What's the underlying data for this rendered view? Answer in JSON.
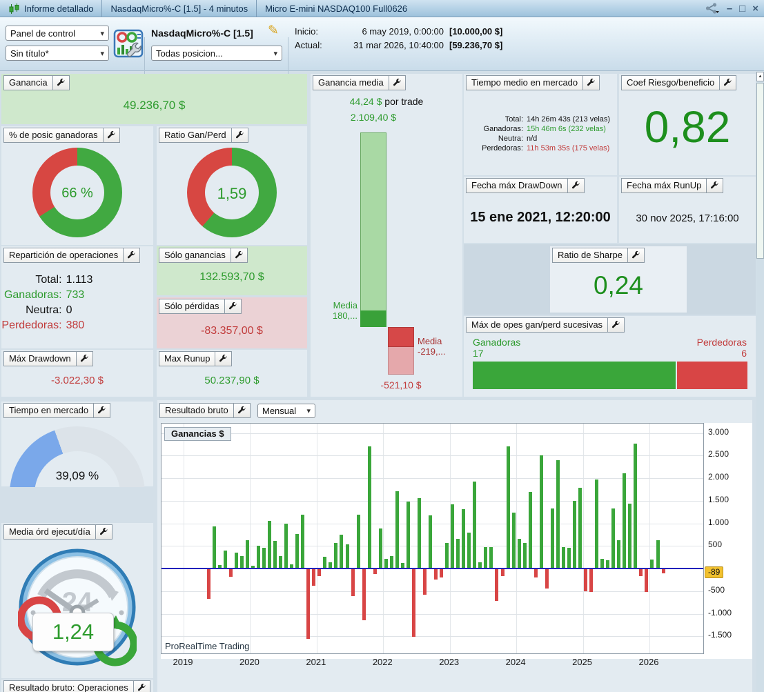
{
  "titlebar": {
    "tab1": "Informe detallado",
    "tab2": "NasdaqMicro%-C [1.5] - 4 minutos",
    "tab3": "Micro E-mini NASDAQ100 Full0626",
    "minimize": "–",
    "maximize": "□",
    "close": "×"
  },
  "toolbar": {
    "dropdown_panel": "Panel de control",
    "dropdown_layout": "Sin título*",
    "instrument": "NasdaqMicro%-C [1.5]",
    "dropdown_positions": "Todas posicion...",
    "inicio_label": "Inicio:",
    "inicio_date": "6 may 2019, 0:00:00",
    "inicio_amount": "[10.000,00 $]",
    "actual_label": "Actual:",
    "actual_date": "31 mar 2026, 10:40:00",
    "actual_amount": "[59.236,70 $]"
  },
  "colors": {
    "green_text": "#2d9b2d",
    "red_text": "#c13b3b",
    "donut_green": "#41a941",
    "donut_red": "#d74742",
    "gauge_blue": "#7aa8ea",
    "gauge_track": "#dce3e9",
    "bar_green": "#3aa63a",
    "bar_red": "#d84545",
    "zero_line": "#2121bb",
    "tag_bg": "#f2c12e",
    "gain_bg": "#cfe8cc",
    "loss_bg": "#ebd2d5"
  },
  "panels": {
    "ganancia": {
      "label": "Ganancia",
      "value": "49.236,70 $"
    },
    "posic_ganadoras": {
      "label": "% de posic ganadoras",
      "value": "66 %",
      "percent": 66
    },
    "ratio_gan_perd": {
      "label": "Ratio Gan/Perd",
      "value": "1,59",
      "green_pct": 61.4
    },
    "ganancia_media": {
      "label": "Ganancia media",
      "per_trade_value": "44,24 $",
      "per_trade_suffix": "por trade",
      "max_win": "2.109,40 $",
      "max_win_num": 2109.4,
      "media_win_label": "Media",
      "media_win": "180,...",
      "media_win_num": 181,
      "media_loss_label": "Media",
      "media_loss": "-219,...",
      "media_loss_num": -219,
      "max_loss": "-521,10 $",
      "max_loss_num": -521.1
    },
    "tiempo_medio": {
      "label": "Tiempo medio en mercado",
      "total_label": "Total:",
      "total": "14h 26m 43s (213 velas)",
      "ganadoras_label": "Ganadoras:",
      "ganadoras": "15h 46m 6s (232 velas)",
      "neutra_label": "Neutra:",
      "neutra": "n/d",
      "perdedoras_label": "Perdedoras:",
      "perdedoras": "11h 53m 35s (175 velas)"
    },
    "coef_riesgo": {
      "label": "Coef Riesgo/beneficio",
      "value": "0,82"
    },
    "fecha_drawdown": {
      "label": "Fecha máx DrawDown",
      "value": "15 ene 2021, 12:20:00"
    },
    "fecha_runup": {
      "label": "Fecha máx RunUp",
      "value": "30 nov 2025, 17:16:00"
    },
    "reparticion": {
      "label": "Repartición de operaciones",
      "total_label": "Total:",
      "total": "1.113",
      "ganadoras_label": "Ganadoras:",
      "ganadoras": "733",
      "neutra_label": "Neutra:",
      "neutra": "0",
      "perdedoras_label": "Perdedoras:",
      "perdedoras": "380"
    },
    "solo_ganancias": {
      "label": "Sólo ganancias",
      "value": "132.593,70 $"
    },
    "solo_perdidas": {
      "label": "Sólo pérdidas",
      "value": "-83.357,00 $"
    },
    "ratio_sharpe": {
      "label": "Ratio de Sharpe",
      "value": "0,24"
    },
    "max_sucesivas": {
      "label": "Máx de opes gan/perd sucesivas",
      "ganadoras_label": "Ganadoras",
      "ganadoras": "17",
      "ganadoras_num": 17,
      "perdedoras_label": "Perdedoras",
      "perdedoras": "6",
      "perdedoras_num": 6
    },
    "max_drawdown": {
      "label": "Máx Drawdown",
      "value": "-3.022,30 $"
    },
    "max_runup": {
      "label": "Max Runup",
      "value": "50.237,90 $"
    },
    "tiempo_mercado": {
      "label": "Tiempo en mercado",
      "value": "39,09 %",
      "percent": 39.09
    },
    "media_ord": {
      "label": "Media órd ejecut/día",
      "value": "1,24",
      "clock_number": "24"
    },
    "resultado_bruto": {
      "label": "Resultado bruto",
      "period": "Mensual",
      "legend": "Ganancias $",
      "watermark": "ProRealTime Trading",
      "last_value_tag": "-89"
    },
    "resultado_operaciones": {
      "label": "Resultado bruto: Operaciones"
    }
  },
  "chart_data": {
    "type": "bar",
    "title": "Resultado bruto (Mensual) - Ganancias $",
    "legend": "Ganancias $",
    "start_month": "2019-05",
    "x_year_labels": [
      "2019",
      "2020",
      "2021",
      "2022",
      "2023",
      "2024",
      "2025",
      "2026"
    ],
    "y_ticks": [
      {
        "v": 3000,
        "label": "3.000"
      },
      {
        "v": 2500,
        "label": "2.500"
      },
      {
        "v": 2000,
        "label": "2.000"
      },
      {
        "v": 1500,
        "label": "1.500"
      },
      {
        "v": 1000,
        "label": "1.000"
      },
      {
        "v": 500,
        "label": "500"
      },
      {
        "v": -500,
        "label": "-500"
      },
      {
        "v": -1000,
        "label": "-1.000"
      },
      {
        "v": -1500,
        "label": "-1.500"
      }
    ],
    "ylim": [
      -1908,
      3206
    ],
    "grid": true,
    "last_value": -89,
    "values": [
      -650,
      930,
      70,
      390,
      -170,
      350,
      280,
      620,
      60,
      510,
      460,
      1060,
      610,
      270,
      990,
      90,
      760,
      1190,
      -1540,
      -360,
      -160,
      260,
      130,
      560,
      750,
      530,
      -600,
      1190,
      -1130,
      2700,
      -110,
      880,
      210,
      280,
      1710,
      120,
      1480,
      -1500,
      1550,
      -560,
      1170,
      -230,
      -180,
      560,
      1420,
      660,
      1310,
      790,
      1920,
      130,
      480,
      470,
      -700,
      -150,
      2700,
      1230,
      650,
      570,
      1700,
      -180,
      2500,
      -420,
      1330,
      2400,
      470,
      460,
      1490,
      1780,
      -490,
      -500,
      1970,
      210,
      190,
      1330,
      630,
      2100,
      1440,
      2770,
      -160,
      -500,
      200,
      620,
      -89
    ]
  }
}
